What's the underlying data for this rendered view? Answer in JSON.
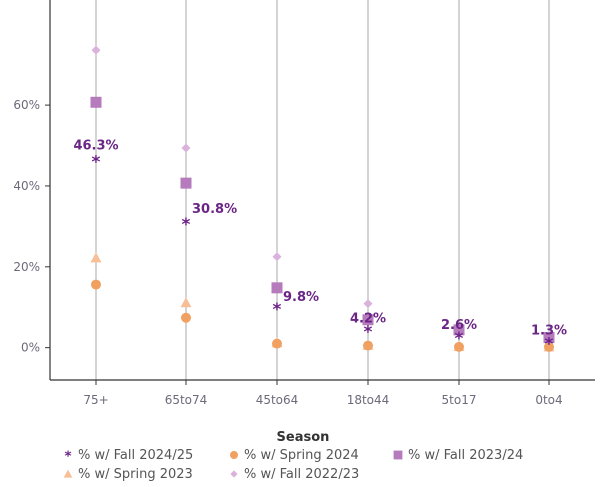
{
  "chart_data": {
    "type": "scatter",
    "categories": [
      "75+",
      "65to74",
      "45to64",
      "18to44",
      "5to17",
      "0to4"
    ],
    "ylim": [
      -8,
      86
    ],
    "yticks": [
      0,
      20,
      40,
      60
    ],
    "ytick_labels": [
      "0%",
      "20%",
      "40%",
      "60%"
    ],
    "grid": "vertical lines at categories",
    "legend_title": "Season",
    "legend_placement": "bottom",
    "series": [
      {
        "name": "% w/ Fall 2024/25",
        "marker": "star",
        "color": "#6a1f87",
        "values": [
          46.3,
          30.8,
          9.8,
          4.2,
          2.6,
          1.3
        ],
        "data_labels": [
          "46.3%",
          "30.8%",
          "9.8%",
          "4.2%",
          "2.6%",
          "1.3%"
        ]
      },
      {
        "name": "% w/ Spring 2024",
        "marker": "circle",
        "color": "#f0a060",
        "values": [
          15.6,
          7.4,
          1.0,
          0.5,
          0.2,
          0.2
        ]
      },
      {
        "name": "% w/ Fall 2023/24",
        "marker": "square",
        "color": "#b57bbd",
        "values": [
          60.7,
          40.7,
          14.8,
          6.9,
          4.4,
          2.5
        ]
      },
      {
        "name": "% w/ Spring 2023",
        "marker": "triangle",
        "color": "#f7bf98",
        "values": [
          22.2,
          11.1,
          1.2,
          0.6,
          0.3,
          0.2
        ]
      },
      {
        "name": "% w/ Fall 2022/23",
        "marker": "diamond",
        "color": "#d9b3dc",
        "values": [
          73.6,
          49.4,
          22.5,
          10.9,
          5.0,
          2.8
        ]
      }
    ]
  }
}
